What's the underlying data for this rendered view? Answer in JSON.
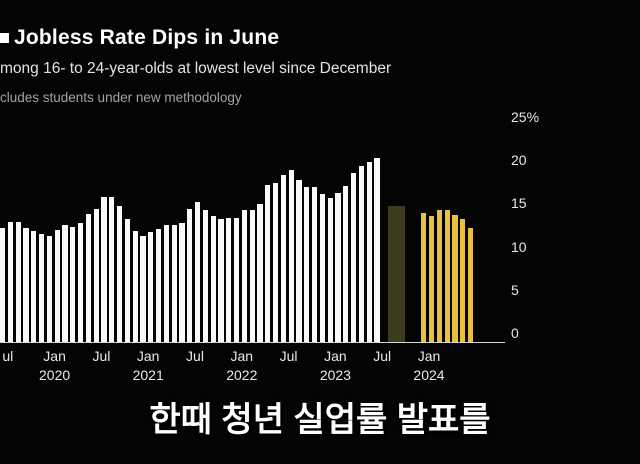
{
  "header": {
    "title": "Jobless Rate Dips in June",
    "subtitle": "mong 16- to 24-year-olds at lowest level since December",
    "note": "cludes students under new methodology"
  },
  "caption": {
    "text": "한때 청년 실업률 발표를"
  },
  "chart_data": {
    "type": "bar",
    "title": "Jobless Rate Dips in June",
    "subtitle": "mong 16- to 24-year-olds at lowest level since December",
    "note": "cludes students under new methodology",
    "ylabel": "%",
    "ylim": [
      0,
      25
    ],
    "grid": false,
    "legend": "none",
    "y_ticks": [
      {
        "value": 25,
        "label": "25%"
      },
      {
        "value": 20,
        "label": "20"
      },
      {
        "value": 15,
        "label": "15"
      },
      {
        "value": 10,
        "label": "10"
      },
      {
        "value": 5,
        "label": "5"
      },
      {
        "value": 0,
        "label": "0"
      }
    ],
    "x_ticks": [
      {
        "index": 1,
        "label": "ul"
      },
      {
        "index": 7,
        "label": "Jan",
        "year": "2020"
      },
      {
        "index": 13,
        "label": "Jul"
      },
      {
        "index": 19,
        "label": "Jan",
        "year": "2021"
      },
      {
        "index": 25,
        "label": "Jul"
      },
      {
        "index": 31,
        "label": "Jan",
        "year": "2022"
      },
      {
        "index": 37,
        "label": "Jul"
      },
      {
        "index": 43,
        "label": "Jan",
        "year": "2023"
      },
      {
        "index": 49,
        "label": "Jul"
      },
      {
        "index": 55,
        "label": "Jan",
        "year": "2024"
      }
    ],
    "series": [
      {
        "name": "old-methodology",
        "color": "#fafafa",
        "start_index": 0,
        "start_month": "Jun 2019",
        "end_month": "Jun 2023",
        "values": [
          13.2,
          13.9,
          13.9,
          13.2,
          12.8,
          12.5,
          12.3,
          13.0,
          13.6,
          13.3,
          13.8,
          14.8,
          15.4,
          16.8,
          16.8,
          15.7,
          14.2,
          12.8,
          12.3,
          12.7,
          13.1,
          13.6,
          13.6,
          13.8,
          15.4,
          16.2,
          15.3,
          14.6,
          14.2,
          14.3,
          14.3,
          15.3,
          15.3,
          16.0,
          18.2,
          18.4,
          19.3,
          19.9,
          18.7,
          17.9,
          17.9,
          17.1,
          16.7,
          17.3,
          18.1,
          19.6,
          20.4,
          20.8,
          21.3
        ]
      },
      {
        "name": "suspended-period",
        "color": "#3c3b1f",
        "start_index": 49.7,
        "span": 2.2,
        "value": 15.8
      },
      {
        "name": "new-methodology",
        "color": "#e9c13a",
        "start_index": 54,
        "start_month": "Dec 2023",
        "end_month": "Jun 2024",
        "values": [
          14.9,
          14.6,
          15.3,
          15.3,
          14.7,
          14.2,
          13.2
        ]
      }
    ]
  }
}
